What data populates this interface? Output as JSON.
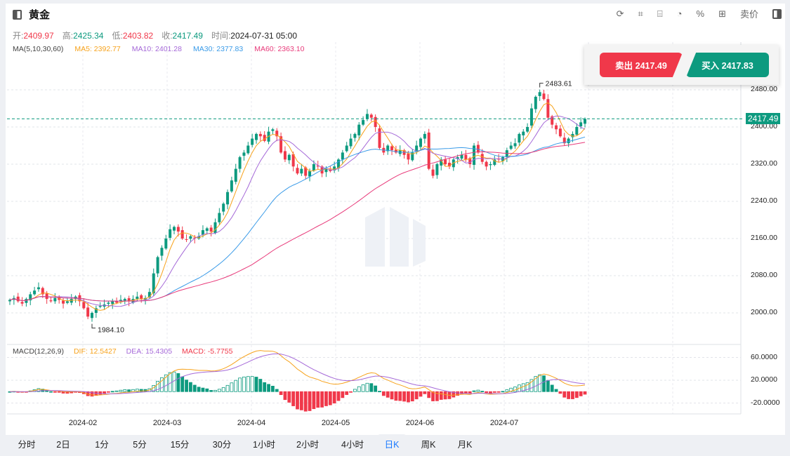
{
  "header": {
    "title": "黄金",
    "tools": [
      "refresh-icon",
      "draw-icon",
      "indicator-icon",
      "pie-icon",
      "percent-icon",
      "grid-icon"
    ],
    "price_type": "卖价"
  },
  "ohlc": {
    "open_label": "开:",
    "open": "2409.97",
    "high_label": "高:",
    "high": "2425.34",
    "low_label": "低:",
    "low": "2403.82",
    "close_label": "收:",
    "close": "2417.49",
    "time_label": "时间:",
    "time": "2024-07-31 05:00"
  },
  "ma": {
    "label": "MA(5,10,30,60)",
    "ma5": "MA5: 2392.77",
    "ma10": "MA10: 2401.28",
    "ma30": "MA30: 2377.83",
    "ma60": "MA60: 2363.10"
  },
  "macd": {
    "label": "MACD(12,26,9)",
    "dif": "DIF: 12.5427",
    "dea": "DEA: 15.4305",
    "macd": "MACD: -5.7755"
  },
  "trade": {
    "sell": "卖出 2417.49",
    "buy": "买入 2417.83"
  },
  "current_price": "2417.49",
  "periods": [
    "分时",
    "2日",
    "1分",
    "5分",
    "15分",
    "30分",
    "1小时",
    "2小时",
    "4小时",
    "日K",
    "周K",
    "月K"
  ],
  "active_period": "日K",
  "colors": {
    "up": "#0d9a7f",
    "down": "#f0384a",
    "ma5": "#f7a21b",
    "ma10": "#a569d8",
    "ma30": "#3a9be8",
    "ma60": "#e83a7a"
  },
  "chart_data": {
    "type": "candlestick",
    "title": "黄金",
    "y_ticks": [
      "2480.00",
      "2400.00",
      "2320.00",
      "2240.00",
      "2160.00",
      "2080.00",
      "2000.00"
    ],
    "macd_ticks": [
      "60.0000",
      "20.0000",
      "-20.0000"
    ],
    "x_ticks": [
      "2024-02",
      "2024-03",
      "2024-04",
      "2024-05",
      "2024-06",
      "2024-07"
    ],
    "max_label": "2483.61",
    "min_label": "1984.10",
    "ylim": [
      1960,
      2530
    ],
    "closes": [
      2028,
      2032,
      2025,
      2020,
      2030,
      2040,
      2048,
      2055,
      2040,
      2030,
      2025,
      2032,
      2028,
      2020,
      2025,
      2030,
      2035,
      2025,
      2010,
      1992,
      2000,
      2010,
      2015,
      2018,
      2022,
      2025,
      2022,
      2028,
      2030,
      2025,
      2030,
      2035,
      2030,
      2032,
      2045,
      2085,
      2120,
      2140,
      2160,
      2180,
      2185,
      2175,
      2160,
      2158,
      2165,
      2160,
      2165,
      2178,
      2182,
      2175,
      2195,
      2215,
      2235,
      2260,
      2285,
      2310,
      2335,
      2345,
      2360,
      2375,
      2385,
      2380,
      2370,
      2390,
      2395,
      2380,
      2345,
      2330,
      2340,
      2315,
      2300,
      2310,
      2295,
      2305,
      2320,
      2315,
      2300,
      2310,
      2305,
      2315,
      2330,
      2345,
      2360,
      2375,
      2385,
      2405,
      2415,
      2428,
      2420,
      2400,
      2355,
      2345,
      2360,
      2350,
      2345,
      2350,
      2340,
      2330,
      2345,
      2360,
      2375,
      2385,
      2310,
      2295,
      2320,
      2330,
      2320,
      2315,
      2330,
      2335,
      2340,
      2330,
      2320,
      2360,
      2345,
      2325,
      2315,
      2320,
      2330,
      2330,
      2335,
      2350,
      2360,
      2365,
      2385,
      2390,
      2400,
      2440,
      2465,
      2475,
      2460,
      2420,
      2405,
      2395,
      2380,
      2365,
      2375,
      2385,
      2400,
      2410,
      2417.49
    ]
  }
}
